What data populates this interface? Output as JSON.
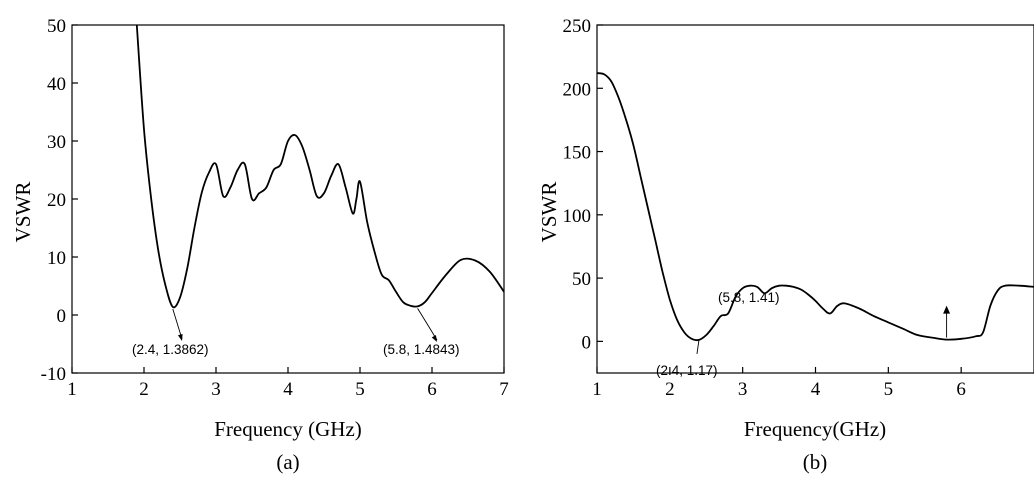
{
  "chart_data": [
    {
      "type": "line",
      "panel_label": "(a)",
      "xlabel": "Frequency (GHz)",
      "ylabel": "VSWR",
      "xlim": [
        1,
        7
      ],
      "ylim": [
        -10,
        50
      ],
      "xticks": [
        "1",
        "2",
        "3",
        "4",
        "5",
        "6",
        "7"
      ],
      "yticks": [
        "-10",
        "0",
        "10",
        "20",
        "30",
        "40",
        "50"
      ],
      "grid": false,
      "series": [
        {
          "x": [
            1.9,
            2.0,
            2.1,
            2.2,
            2.3,
            2.4,
            2.5,
            2.6,
            2.7,
            2.8,
            2.9,
            3.0,
            3.1,
            3.2,
            3.3,
            3.4,
            3.5,
            3.6,
            3.7,
            3.8,
            3.9,
            4.0,
            4.1,
            4.2,
            4.3,
            4.4,
            4.5,
            4.6,
            4.7,
            4.8,
            4.9,
            4.95,
            5.0,
            5.1,
            5.2,
            5.3,
            5.4,
            5.5,
            5.6,
            5.7,
            5.8,
            5.9,
            6.0,
            6.2,
            6.4,
            6.6,
            6.8,
            7.0
          ],
          "y": [
            50,
            32,
            20,
            11,
            5,
            1.4,
            3,
            8,
            15,
            21,
            24.5,
            26,
            20.5,
            22,
            25,
            26,
            20,
            21,
            22,
            25,
            26,
            30,
            31,
            29,
            25,
            20.5,
            21,
            24,
            26,
            22,
            17.5,
            20,
            23,
            16,
            11,
            7,
            6,
            4,
            2.2,
            1.6,
            1.48,
            2.2,
            3.8,
            7,
            9.5,
            9.4,
            7.5,
            4
          ]
        }
      ],
      "annotations": [
        {
          "text": "(2.4, 1.3862)",
          "x": 2.4,
          "y": 1.3862
        },
        {
          "text": "(5.8, 1.4843)",
          "x": 5.8,
          "y": 1.4843
        }
      ]
    },
    {
      "type": "line",
      "panel_label": "(b)",
      "xlabel": "Frequency(GHz)",
      "ylabel": "VSWR",
      "xlim": [
        1,
        7
      ],
      "ylim": [
        -25,
        250
      ],
      "xticks": [
        "1",
        "2",
        "3",
        "4",
        "5",
        "6"
      ],
      "yticks": [
        "0",
        "50",
        "100",
        "150",
        "200",
        "250"
      ],
      "grid": false,
      "series": [
        {
          "x": [
            1.0,
            1.1,
            1.2,
            1.3,
            1.4,
            1.5,
            1.6,
            1.7,
            1.8,
            1.9,
            2.0,
            2.1,
            2.2,
            2.3,
            2.4,
            2.5,
            2.6,
            2.7,
            2.8,
            2.9,
            3.0,
            3.1,
            3.2,
            3.3,
            3.4,
            3.5,
            3.6,
            3.7,
            3.8,
            3.9,
            4.0,
            4.1,
            4.2,
            4.3,
            4.4,
            4.6,
            4.8,
            5.0,
            5.2,
            5.4,
            5.6,
            5.8,
            6.0,
            6.2,
            6.3,
            6.4,
            6.5,
            6.6,
            6.8,
            7.0
          ],
          "y": [
            212,
            211,
            205,
            192,
            175,
            155,
            130,
            105,
            80,
            55,
            33,
            17,
            7,
            2,
            1.17,
            5,
            12,
            20,
            22,
            35,
            42,
            44,
            43,
            38,
            42,
            44,
            44,
            43,
            41,
            37,
            32,
            26,
            22,
            28,
            30,
            26,
            20,
            15,
            10,
            5,
            3,
            1.41,
            2,
            4,
            7,
            28,
            40,
            44,
            44,
            43
          ]
        }
      ],
      "annotations": [
        {
          "text": "(2.4, 1.17)",
          "x": 2.4,
          "y": 1.17
        },
        {
          "text": "(5.8, 1.41)",
          "x": 5.8,
          "y": 1.41
        }
      ]
    }
  ]
}
